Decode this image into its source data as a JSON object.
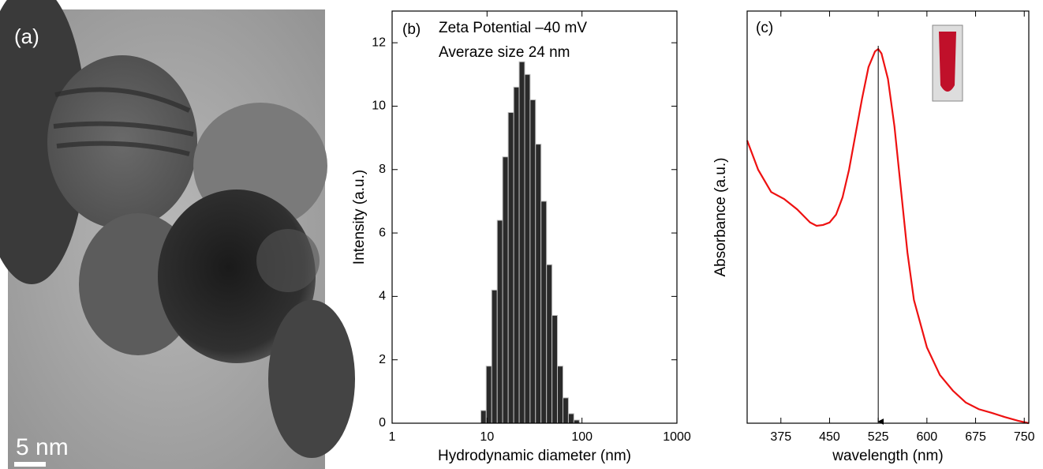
{
  "image_panel": {
    "label": "(a)",
    "scale_bar": "5 nm"
  },
  "chart_data": [
    {
      "type": "histogram",
      "label": "(b)",
      "annotations": [
        "Zeta Potential  –40 mV",
        "Averaze size 24 nm"
      ],
      "xlabel": "Hydrodynamic diameter (nm)",
      "ylabel": "Intensity (a.u.)",
      "log_x": true,
      "xlim": [
        1,
        1000
      ],
      "xticks": [
        1,
        10,
        100,
        1000
      ],
      "ylim": [
        0,
        13
      ],
      "yticks": [
        0,
        2,
        4,
        6,
        8,
        10,
        12
      ],
      "color": "#2a2a2a",
      "bins": [
        8.6,
        9.8,
        11.2,
        12.8,
        14.6,
        16.7,
        19.1,
        21.8,
        24.9,
        28.4,
        32.4,
        37.0,
        42.3,
        48.3,
        55.1,
        63.0,
        71.9,
        82.1,
        93.8
      ],
      "values": [
        0.4,
        1.8,
        4.2,
        6.4,
        8.4,
        9.8,
        10.6,
        11.4,
        11.0,
        10.2,
        8.8,
        7.0,
        5.0,
        3.4,
        1.8,
        0.8,
        0.3,
        0.1
      ]
    },
    {
      "type": "line",
      "label": "(c)",
      "xlabel": "wavelength (nm)",
      "ylabel": "Absorbance (a.u.)",
      "xlim": [
        323,
        757
      ],
      "xticks": [
        375,
        450,
        525,
        600,
        675,
        750
      ],
      "ylim": [
        0,
        1
      ],
      "color": "#ee1111",
      "x": [
        323,
        340,
        360,
        380,
        400,
        420,
        430,
        440,
        450,
        460,
        470,
        480,
        490,
        500,
        510,
        520,
        525,
        530,
        540,
        550,
        560,
        570,
        580,
        600,
        620,
        640,
        660,
        680,
        700,
        720,
        740,
        757
      ],
      "values": [
        0.686,
        0.615,
        0.561,
        0.544,
        0.519,
        0.487,
        0.479,
        0.481,
        0.487,
        0.506,
        0.548,
        0.615,
        0.701,
        0.787,
        0.864,
        0.902,
        0.908,
        0.897,
        0.835,
        0.72,
        0.567,
        0.414,
        0.299,
        0.184,
        0.117,
        0.079,
        0.05,
        0.034,
        0.025,
        0.015,
        0.006,
        0
      ]
    }
  ]
}
